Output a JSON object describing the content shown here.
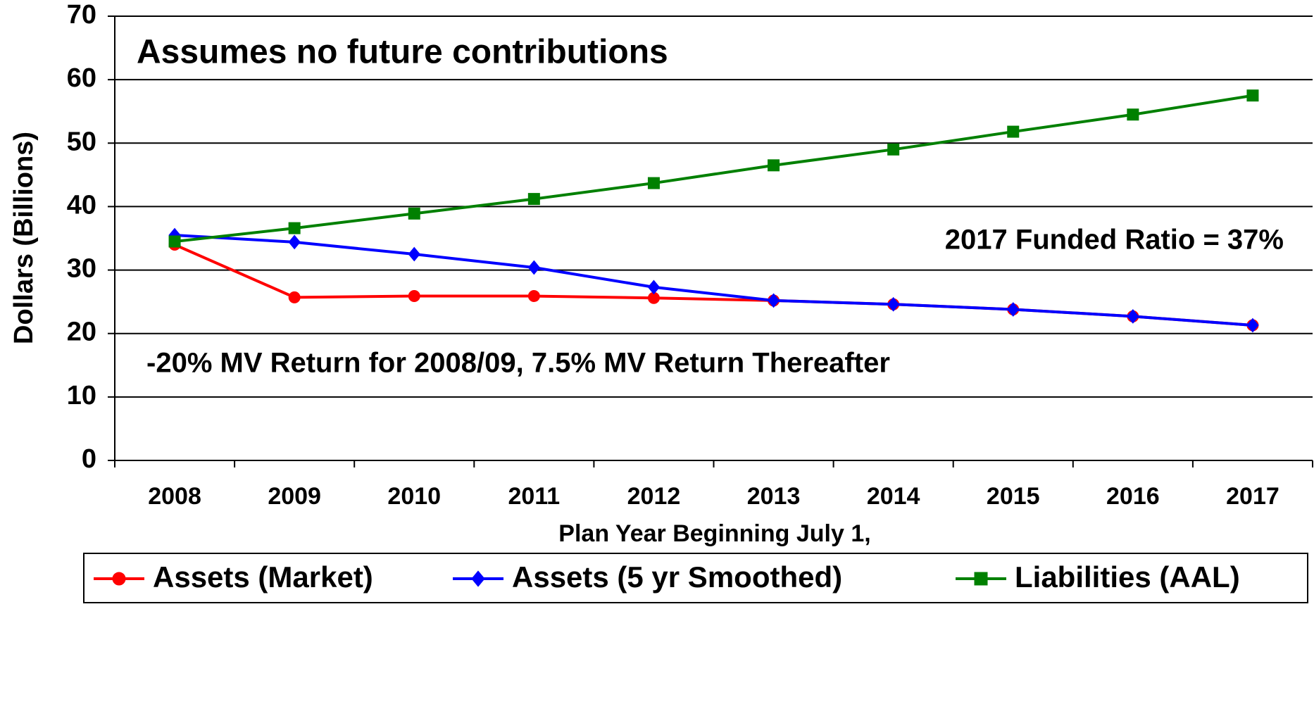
{
  "chart_data": {
    "type": "line",
    "x_label": "Plan Year Beginning July 1,",
    "y_label": "Dollars (Billions)",
    "annotations": [
      "Assumes no future contributions",
      "2017 Funded Ratio = 37%",
      "-20% MV Return for 2008/09, 7.5% MV Return Thereafter"
    ],
    "categories": [
      "2008",
      "2009",
      "2010",
      "2011",
      "2012",
      "2013",
      "2014",
      "2015",
      "2016",
      "2017"
    ],
    "series": [
      {
        "name": "Assets (Market)",
        "color": "#ff0000",
        "marker": "circle",
        "values": [
          34.0,
          25.7,
          25.9,
          25.9,
          25.6,
          25.2,
          24.6,
          23.8,
          22.7,
          21.3
        ]
      },
      {
        "name": "Assets (5 yr Smoothed)",
        "color": "#0000ff",
        "marker": "diamond",
        "values": [
          35.5,
          34.4,
          32.5,
          30.4,
          27.3,
          25.2,
          24.6,
          23.8,
          22.7,
          21.3
        ]
      },
      {
        "name": "Liabilities (AAL)",
        "color": "#008000",
        "marker": "square",
        "values": [
          34.5,
          36.6,
          38.9,
          41.2,
          43.7,
          46.5,
          49.0,
          51.8,
          54.5,
          57.5
        ]
      }
    ],
    "ylim": [
      0,
      70
    ],
    "yticks": [
      0,
      10,
      20,
      30,
      40,
      50,
      60,
      70
    ],
    "grid": true,
    "legend": "bottom"
  }
}
